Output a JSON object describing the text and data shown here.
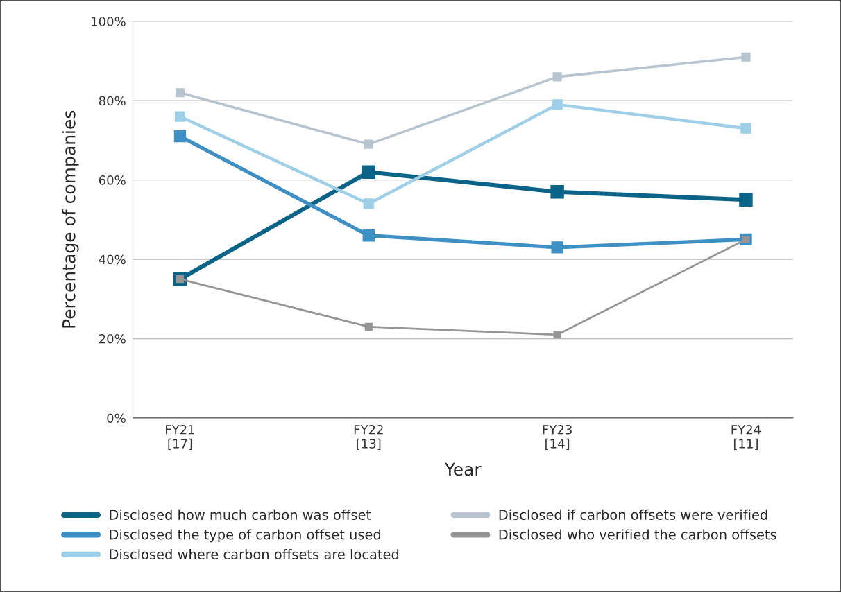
{
  "chart_data": {
    "type": "line",
    "categories": [
      "FY21\n[17]",
      "FY22\n[13]",
      "FY23\n[14]",
      "FY24\n[11]"
    ],
    "xlabel": "Year",
    "ylabel": "Percentage of companies",
    "ylim": [
      0,
      100
    ],
    "yticks": [
      {
        "value": 0,
        "label": "0%"
      },
      {
        "value": 20,
        "label": "20%"
      },
      {
        "value": 40,
        "label": "40%"
      },
      {
        "value": 60,
        "label": "60%"
      },
      {
        "value": 80,
        "label": "80%"
      },
      {
        "value": 100,
        "label": "100%"
      }
    ],
    "grid": "y",
    "legend": "bottom",
    "marker": "square",
    "line_style": "solid",
    "series": [
      {
        "name": "Disclosed how much carbon was offset",
        "color": "#0b6388",
        "values": [
          35,
          62,
          57,
          55
        ]
      },
      {
        "name": "Disclosed the type of carbon offset used",
        "color": "#3d8fc4",
        "values": [
          71,
          46,
          43,
          45
        ]
      },
      {
        "name": "Disclosed where carbon offsets are located",
        "color": "#9fcfe8",
        "values": [
          76,
          54,
          79,
          73
        ]
      },
      {
        "name": "Disclosed if carbon offsets were verified",
        "color": "#b7c4cf",
        "values": [
          82,
          69,
          86,
          91
        ]
      },
      {
        "name": "Disclosed who verified the carbon offsets",
        "color": "#959595",
        "values": [
          35,
          23,
          21,
          45
        ]
      }
    ]
  }
}
